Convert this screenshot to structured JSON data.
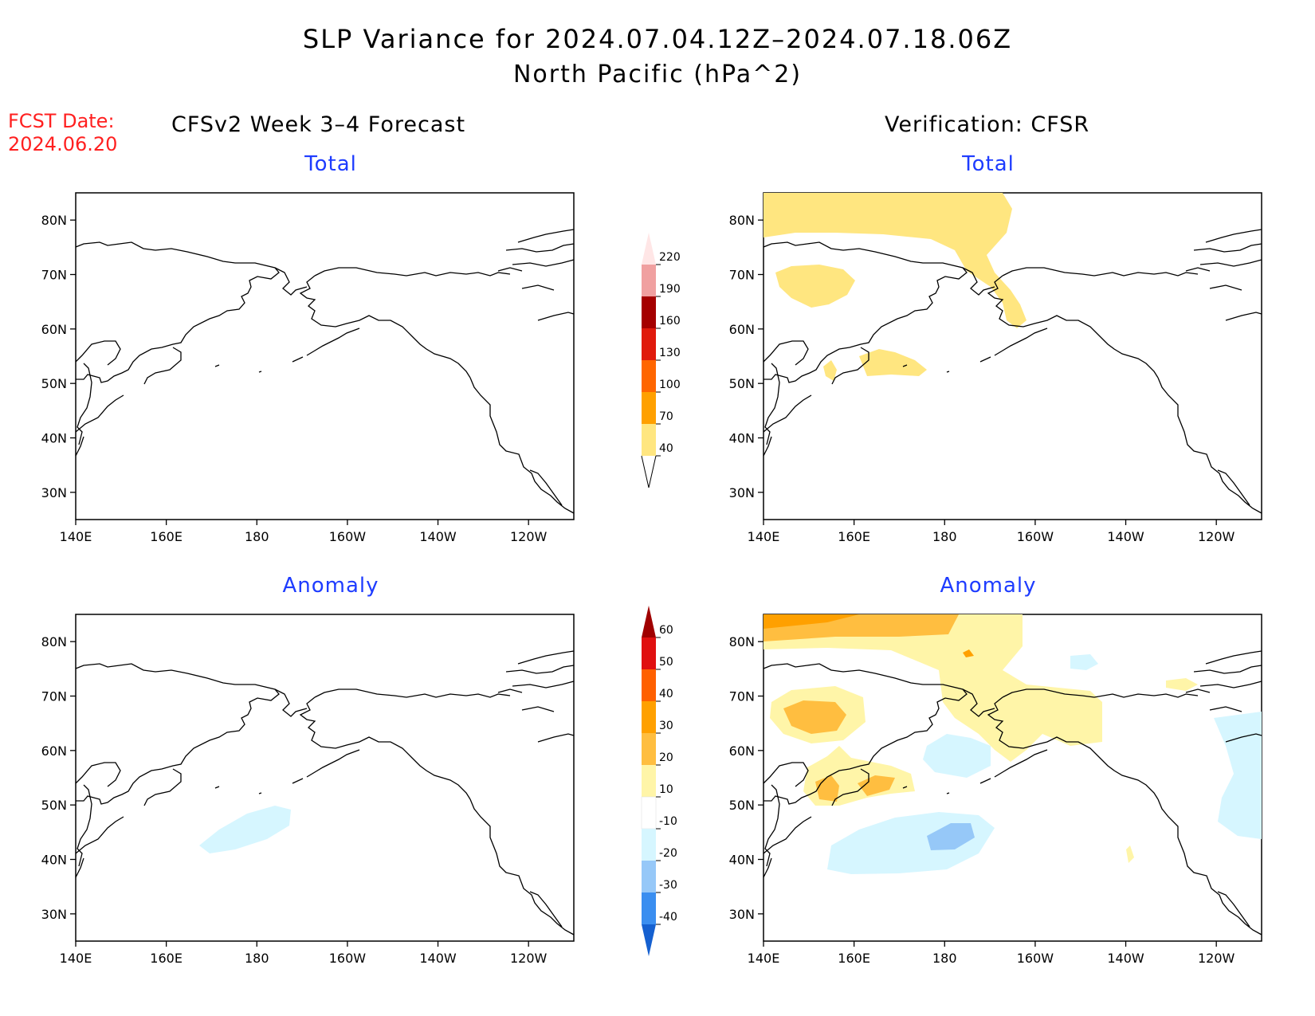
{
  "title": "SLP Variance for 2024.07.04.12Z–2024.07.18.06Z",
  "subtitle": "North Pacific (hPa^2)",
  "fcst_date": {
    "label": "FCST Date:",
    "value": "2024.06.20"
  },
  "left_column_title": "CFSv2 Week 3–4 Forecast",
  "right_column_title": "Verification: CFSR",
  "panel_labels": {
    "total": "Total",
    "anomaly": "Anomaly"
  },
  "axes": {
    "lon_ticks": [
      "140E",
      "160E",
      "180",
      "160W",
      "140W",
      "120W"
    ],
    "lat_ticks": [
      "80N",
      "70N",
      "60N",
      "50N",
      "40N",
      "30N"
    ],
    "lon_range_deg_east": [
      140,
      250
    ],
    "lat_range": [
      25,
      85
    ]
  },
  "total_colorbar": {
    "levels": [
      "40",
      "70",
      "100",
      "130",
      "160",
      "190",
      "220"
    ],
    "colors": [
      "#ffe680",
      "#ffa000",
      "#ff6600",
      "#e01a0c",
      "#a50000",
      "#f0a0a0",
      "#ffe6e6"
    ]
  },
  "anomaly_colorbar": {
    "levels": [
      "-40",
      "-30",
      "-20",
      "-10",
      "10",
      "20",
      "30",
      "40",
      "50",
      "60"
    ],
    "colors": [
      "#1560d0",
      "#3a8ef0",
      "#96c8f8",
      "#d6f6ff",
      "#ffffff",
      "#fff5a8",
      "#ffbe40",
      "#ffa000",
      "#ff6000",
      "#e01010",
      "#a00000"
    ]
  }
}
